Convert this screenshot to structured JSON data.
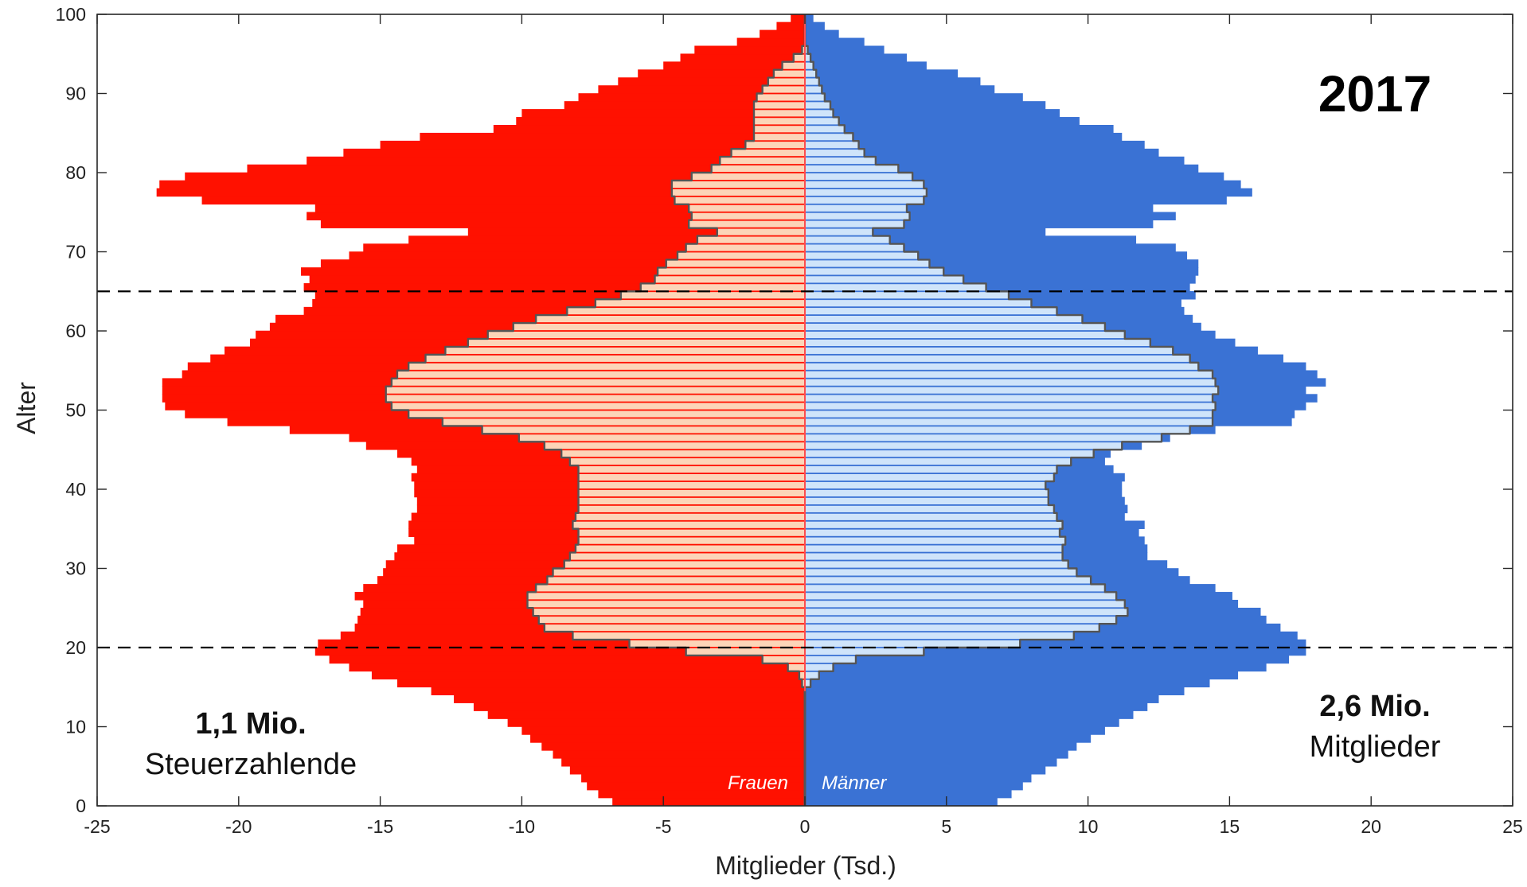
{
  "chart_data": {
    "type": "population-pyramid",
    "xlabel": "Mitglieder (Tsd.)",
    "ylabel": "Alter",
    "xlim": [
      -25,
      25
    ],
    "ylim": [
      0,
      100
    ],
    "xticks": [
      -25,
      -20,
      -15,
      -10,
      -5,
      0,
      5,
      10,
      15,
      20,
      25
    ],
    "yticks": [
      0,
      10,
      20,
      30,
      40,
      50,
      60,
      70,
      80,
      90,
      100
    ],
    "year": "2017",
    "reference_lines_age": [
      20,
      65
    ],
    "annotations": {
      "left_bold": "1,1 Mio.",
      "left_text": "Steuerzahlende",
      "right_bold": "2,6 Mio.",
      "right_text": "Mitglieder"
    },
    "gender_labels": {
      "women": "Frauen",
      "men": "Männer"
    },
    "colors": {
      "women_members": "#ff1100",
      "men_members": "#3a72d4",
      "women_taxpayers": "#fcd5b8",
      "men_taxpayers": "#cfe4fa",
      "outline": "#555555",
      "center_line": "#ff4d4d"
    },
    "legend": "none",
    "series": [
      {
        "name": "Frauen",
        "ages": [
          0,
          1,
          2,
          3,
          4,
          5,
          6,
          7,
          8,
          9,
          10,
          11,
          12,
          13,
          14,
          15,
          16,
          17,
          18,
          19,
          20,
          21,
          22,
          23,
          24,
          25,
          26,
          27,
          28,
          29,
          30,
          31,
          32,
          33,
          34,
          35,
          36,
          37,
          38,
          39,
          40,
          41,
          42,
          43,
          44,
          45,
          46,
          47,
          48,
          49,
          50,
          51,
          52,
          53,
          54,
          55,
          56,
          57,
          58,
          59,
          60,
          61,
          62,
          63,
          64,
          65,
          66,
          67,
          68,
          69,
          70,
          71,
          72,
          73,
          74,
          75,
          76,
          77,
          78,
          79,
          80,
          81,
          82,
          83,
          84,
          85,
          86,
          87,
          88,
          89,
          90,
          91,
          92,
          93,
          94,
          95,
          96,
          97,
          98,
          99
        ],
        "members": [
          6.8,
          7.3,
          7.7,
          7.9,
          8.3,
          8.6,
          8.9,
          9.3,
          9.7,
          10.0,
          10.5,
          11.2,
          11.7,
          12.4,
          13.2,
          14.4,
          15.3,
          16.1,
          16.8,
          17.3,
          17.2,
          16.4,
          15.9,
          15.8,
          15.7,
          15.6,
          15.9,
          15.6,
          15.1,
          14.9,
          14.8,
          14.5,
          14.4,
          13.8,
          14.0,
          14.0,
          13.9,
          13.7,
          13.7,
          13.8,
          13.8,
          13.9,
          13.7,
          13.9,
          14.4,
          15.5,
          16.1,
          18.2,
          20.4,
          21.9,
          22.6,
          22.7,
          22.7,
          22.7,
          22.0,
          21.8,
          21.0,
          20.5,
          19.6,
          19.4,
          18.9,
          18.7,
          17.7,
          17.4,
          17.3,
          17.7,
          17.5,
          17.8,
          17.1,
          16.1,
          15.6,
          14.0,
          11.9,
          17.1,
          17.6,
          17.3,
          21.3,
          22.9,
          22.8,
          21.9,
          19.7,
          17.6,
          16.3,
          15.0,
          13.6,
          11.0,
          10.2,
          10.0,
          8.5,
          8.0,
          7.3,
          6.6,
          5.9,
          5.0,
          4.4,
          3.9,
          2.4,
          1.6,
          1.0,
          0.5
        ],
        "taxpayers": [
          0.0,
          0.0,
          0.0,
          0.0,
          0.0,
          0.0,
          0.0,
          0.0,
          0.0,
          0.0,
          0.0,
          0.0,
          0.0,
          0.0,
          0.0,
          0.1,
          0.2,
          0.6,
          1.5,
          4.2,
          6.2,
          8.2,
          9.2,
          9.4,
          9.6,
          9.8,
          9.8,
          9.5,
          9.1,
          8.9,
          8.5,
          8.3,
          8.1,
          8.0,
          8.0,
          8.2,
          8.1,
          8.0,
          8.0,
          8.0,
          8.0,
          8.0,
          8.0,
          8.3,
          8.6,
          9.2,
          10.1,
          11.4,
          12.8,
          14.0,
          14.6,
          14.8,
          14.8,
          14.6,
          14.4,
          14.0,
          13.4,
          12.7,
          11.9,
          11.2,
          10.3,
          9.5,
          8.4,
          7.4,
          6.5,
          5.8,
          5.3,
          5.2,
          4.9,
          4.5,
          4.2,
          3.8,
          3.1,
          4.1,
          4.0,
          4.1,
          4.6,
          4.7,
          4.7,
          4.0,
          3.3,
          3.0,
          2.6,
          2.1,
          1.8,
          1.8,
          1.8,
          1.8,
          1.8,
          1.7,
          1.5,
          1.3,
          1.1,
          0.8,
          0.4,
          0.1,
          0.0,
          0.0,
          0.0,
          0.0
        ]
      },
      {
        "name": "Männer",
        "ages": [
          0,
          1,
          2,
          3,
          4,
          5,
          6,
          7,
          8,
          9,
          10,
          11,
          12,
          13,
          14,
          15,
          16,
          17,
          18,
          19,
          20,
          21,
          22,
          23,
          24,
          25,
          26,
          27,
          28,
          29,
          30,
          31,
          32,
          33,
          34,
          35,
          36,
          37,
          38,
          39,
          40,
          41,
          42,
          43,
          44,
          45,
          46,
          47,
          48,
          49,
          50,
          51,
          52,
          53,
          54,
          55,
          56,
          57,
          58,
          59,
          60,
          61,
          62,
          63,
          64,
          65,
          66,
          67,
          68,
          69,
          70,
          71,
          72,
          73,
          74,
          75,
          76,
          77,
          78,
          79,
          80,
          81,
          82,
          83,
          84,
          85,
          86,
          87,
          88,
          89,
          90,
          91,
          92,
          93,
          94,
          95,
          96,
          97,
          98,
          99
        ],
        "members": [
          6.8,
          7.3,
          7.7,
          8.0,
          8.5,
          8.9,
          9.3,
          9.6,
          10.1,
          10.6,
          11.1,
          11.6,
          12.1,
          12.5,
          13.4,
          14.3,
          15.3,
          16.3,
          17.1,
          17.7,
          17.7,
          17.4,
          16.8,
          16.3,
          16.1,
          15.3,
          15.1,
          14.5,
          13.6,
          13.2,
          12.8,
          12.1,
          12.1,
          12.0,
          11.8,
          12.0,
          11.3,
          11.4,
          11.3,
          11.2,
          11.2,
          11.3,
          10.9,
          10.6,
          10.8,
          11.9,
          12.9,
          14.5,
          17.2,
          17.3,
          17.7,
          18.1,
          17.7,
          18.4,
          18.1,
          17.7,
          16.9,
          16.0,
          15.2,
          14.5,
          14.0,
          13.7,
          13.4,
          13.3,
          13.8,
          13.6,
          13.8,
          13.9,
          13.9,
          13.5,
          13.1,
          11.7,
          8.5,
          12.3,
          13.1,
          12.3,
          14.9,
          15.8,
          15.4,
          14.8,
          13.9,
          13.4,
          12.5,
          12.0,
          11.2,
          10.9,
          9.7,
          9.0,
          8.5,
          7.7,
          6.7,
          6.2,
          5.4,
          4.3,
          3.6,
          2.8,
          2.1,
          1.2,
          0.7,
          0.3
        ],
        "taxpayers": [
          0.0,
          0.0,
          0.0,
          0.0,
          0.0,
          0.0,
          0.0,
          0.0,
          0.0,
          0.0,
          0.0,
          0.0,
          0.0,
          0.0,
          0.0,
          0.2,
          0.5,
          1.0,
          1.8,
          4.2,
          7.6,
          9.5,
          10.4,
          11.0,
          11.4,
          11.3,
          11.0,
          10.6,
          10.1,
          9.6,
          9.3,
          9.1,
          9.1,
          9.2,
          9.0,
          9.1,
          8.9,
          8.8,
          8.6,
          8.6,
          8.5,
          8.8,
          8.9,
          9.4,
          10.2,
          11.2,
          12.6,
          13.6,
          14.4,
          14.4,
          14.5,
          14.4,
          14.6,
          14.5,
          14.4,
          13.9,
          13.6,
          13.0,
          12.2,
          11.3,
          10.6,
          9.8,
          8.9,
          8.0,
          7.2,
          6.4,
          5.6,
          4.9,
          4.4,
          4.0,
          3.5,
          3.0,
          2.4,
          3.5,
          3.7,
          3.6,
          4.2,
          4.3,
          4.2,
          3.8,
          3.3,
          2.5,
          2.1,
          1.9,
          1.7,
          1.4,
          1.2,
          1.0,
          0.9,
          0.7,
          0.6,
          0.5,
          0.4,
          0.3,
          0.2,
          0.1,
          0.0,
          0.0,
          0.0,
          0.0
        ]
      }
    ]
  }
}
